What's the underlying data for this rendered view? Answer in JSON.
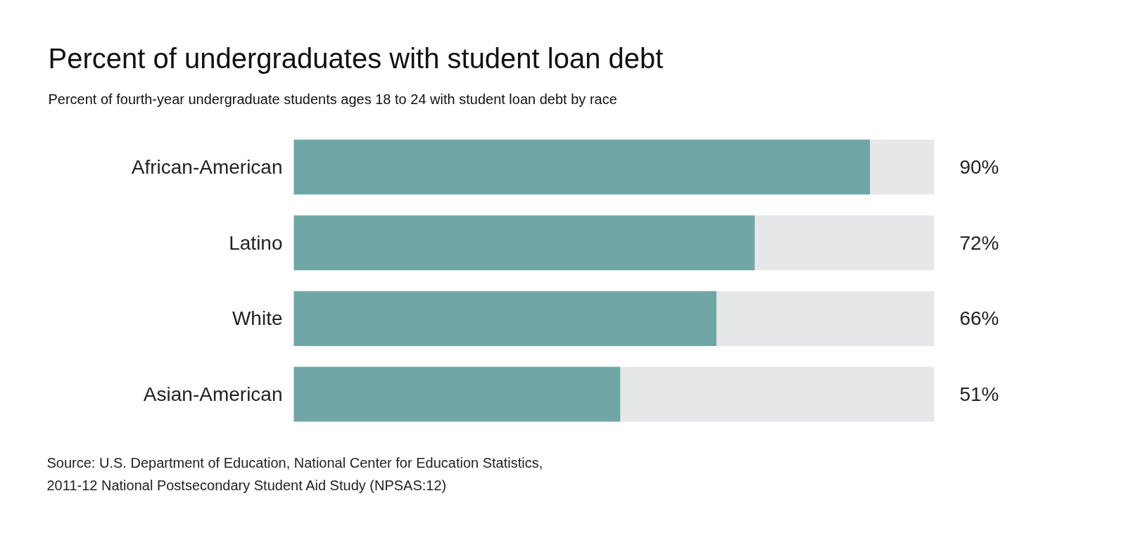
{
  "chart_data": {
    "type": "bar",
    "orientation": "horizontal",
    "stacked": true,
    "title": "Percent of undergraduates with student loan debt",
    "subtitle": "Percent of fourth-year undergraduate students ages 18 to 24 with student loan debt by race",
    "categories": [
      "African-American",
      "Latino",
      "White",
      "Asian-American"
    ],
    "series": [
      {
        "color": "#70a6a6",
        "values": [
          90,
          72,
          66,
          51
        ],
        "value_labels": [
          "90%",
          "72%",
          "66%",
          "51%"
        ]
      },
      {
        "color": "#e6e7e8",
        "values": [
          10,
          28,
          34,
          49
        ]
      }
    ],
    "tick_labels": "y",
    "annotations": [
      "Source: U.S. Department of Education, National Center for Education Statistics,\n2011-12 National Postsecondary Student Aid Study (NPSAS:12)"
    ]
  }
}
